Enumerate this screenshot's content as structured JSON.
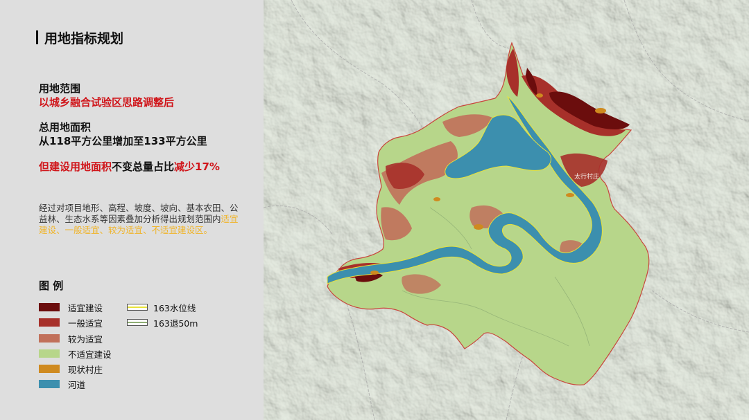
{
  "title": "用地指标规划",
  "scope": {
    "label": "用地范围",
    "value": "以城乡融合试验区思路调整后"
  },
  "area": {
    "label": "总用地面积",
    "value": "从118平方公里增加至133平方公里"
  },
  "summary": {
    "prefix": "但",
    "highlight1": "建设用地面积",
    "middle": "不变总量占比",
    "highlight2": "减少17%"
  },
  "description": {
    "text": "经过对项目地形、高程、坡度、坡向、基本农田、公益林、生态水系等因素叠加分析得出规划范围内",
    "highlight": "适宜建设、一般适宜、较为适宜、不适宜建设区。"
  },
  "legend": {
    "title": "图 例",
    "items": [
      {
        "label": "适宜建设",
        "color": "#6b0d0d"
      },
      {
        "label": "一般适宜",
        "color": "#a7302a"
      },
      {
        "label": "较为适宜",
        "color": "#c1705a"
      },
      {
        "label": "不适宜建设",
        "color": "#b7d68a"
      },
      {
        "label": "现状村庄",
        "color": "#cf8a1f"
      },
      {
        "label": "河道",
        "color": "#3c8fae"
      }
    ],
    "lines": [
      {
        "label": "163水位线",
        "color": "#e8e23a"
      },
      {
        "label": "163退50m",
        "color": "#8fae74"
      }
    ]
  },
  "map": {
    "place_label": "太行村庄"
  },
  "colors": {
    "accent_red": "#d0161b",
    "highlight_yellow": "#f0b428"
  }
}
